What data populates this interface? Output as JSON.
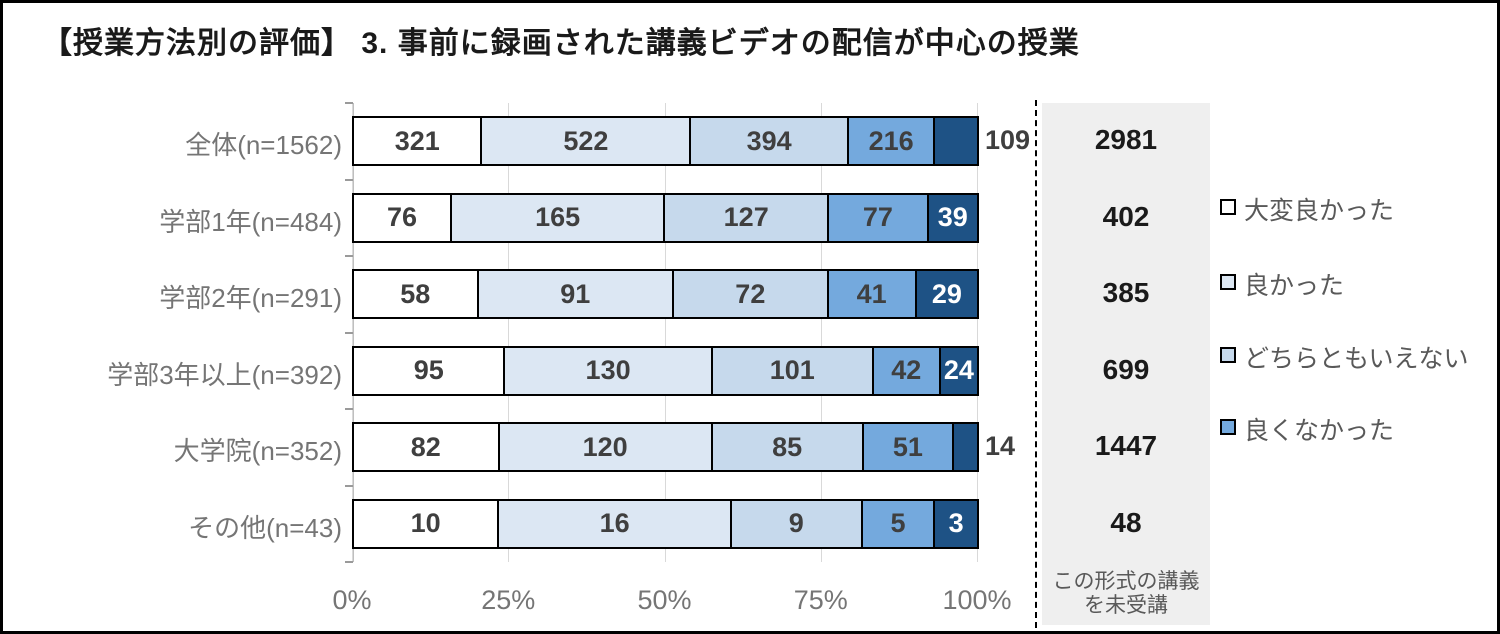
{
  "title": "【授業方法別の評価】 3. 事前に録画された講義ビデオの配信が中心の授業",
  "chart_data": {
    "type": "bar",
    "subtype": "horizontal-100%-stacked",
    "title": "【授業方法別の評価】 3. 事前に録画された講義ビデオの配信が中心の授業",
    "categories": [
      "全体(n=1562)",
      "学部1年(n=484)",
      "学部2年(n=291)",
      "学部3年以上(n=392)",
      "大学院(n=352)",
      "その他(n=43)"
    ],
    "series": [
      {
        "name": "大変良かった",
        "color": "#ffffff",
        "values": [
          321,
          76,
          58,
          95,
          82,
          10
        ]
      },
      {
        "name": "良かった",
        "color": "#dce7f3",
        "values": [
          522,
          165,
          91,
          130,
          120,
          16
        ]
      },
      {
        "name": "どちらともいえない",
        "color": "#c6d9ec",
        "values": [
          394,
          127,
          72,
          101,
          85,
          9
        ]
      },
      {
        "name": "良くなかった",
        "color": "#74a9dd",
        "values": [
          216,
          77,
          41,
          42,
          51,
          5
        ]
      },
      {
        "name": "",
        "color": "#1e5285",
        "values": [
          109,
          39,
          29,
          24,
          14,
          3
        ]
      }
    ],
    "x_axis": {
      "ticks": [
        "0%",
        "25%",
        "50%",
        "75%",
        "100%"
      ],
      "range_pct": [
        0,
        100
      ],
      "gridlines": true
    },
    "legend": {
      "position": "right",
      "visible_items": [
        "大変良かった",
        "良かった",
        "どちらともいえない",
        "良くなかった"
      ]
    },
    "side_panel": {
      "footer": "この形式の講義を未受講",
      "values": [
        2981,
        402,
        385,
        699,
        1447,
        48
      ]
    },
    "style_colors": {
      "segment_border": "#000000",
      "gridline": "#d9d9d9",
      "label_dark": "#3f3f3f",
      "label_light": "#ffffff",
      "axis_text": "#757575",
      "panel_bg": "#efefef"
    }
  }
}
